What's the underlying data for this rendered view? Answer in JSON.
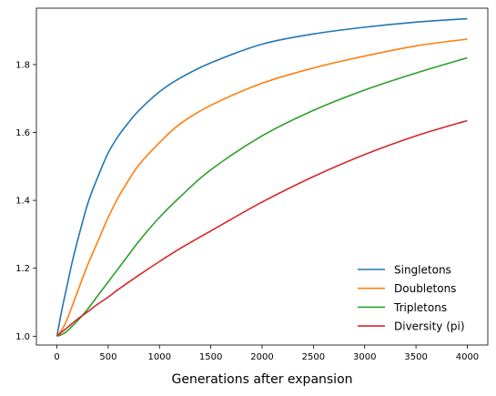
{
  "chart_data": {
    "type": "line",
    "title": "",
    "xlabel": "Generations after expansion",
    "ylabel": "",
    "xlim": [
      -200,
      4200
    ],
    "ylim": [
      0.974,
      1.966
    ],
    "xticks": [
      0,
      500,
      1000,
      1500,
      2000,
      2500,
      3000,
      3500,
      4000
    ],
    "yticks": [
      1.0,
      1.2,
      1.4,
      1.6,
      1.8
    ],
    "grid": false,
    "legend_position": "lower right",
    "series": [
      {
        "name": "Singletons",
        "color": "#1f77b4",
        "x": [
          0,
          50,
          100,
          150,
          200,
          300,
          400,
          500,
          600,
          700,
          800,
          1000,
          1200,
          1500,
          2000,
          2500,
          3000,
          3500,
          4000
        ],
        "y": [
          1.0,
          1.08,
          1.15,
          1.22,
          1.28,
          1.39,
          1.47,
          1.54,
          1.59,
          1.63,
          1.665,
          1.72,
          1.76,
          1.805,
          1.86,
          1.89,
          1.91,
          1.925,
          1.935
        ]
      },
      {
        "name": "Doubletons",
        "color": "#ff7f0e",
        "x": [
          0,
          50,
          100,
          150,
          200,
          300,
          400,
          500,
          600,
          700,
          800,
          1000,
          1200,
          1500,
          2000,
          2500,
          3000,
          3500,
          4000
        ],
        "y": [
          1.0,
          1.02,
          1.05,
          1.09,
          1.13,
          1.21,
          1.28,
          1.35,
          1.41,
          1.46,
          1.505,
          1.57,
          1.625,
          1.68,
          1.745,
          1.79,
          1.825,
          1.855,
          1.875
        ]
      },
      {
        "name": "Tripletons",
        "color": "#2ca02c",
        "x": [
          0,
          50,
          100,
          150,
          200,
          300,
          400,
          500,
          600,
          700,
          800,
          1000,
          1200,
          1500,
          2000,
          2500,
          3000,
          3500,
          4000
        ],
        "y": [
          1.0,
          1.005,
          1.015,
          1.03,
          1.045,
          1.08,
          1.12,
          1.16,
          1.2,
          1.24,
          1.28,
          1.35,
          1.41,
          1.49,
          1.59,
          1.665,
          1.725,
          1.775,
          1.82
        ]
      },
      {
        "name": "Diversity (pi)",
        "color": "#d62728",
        "x": [
          0,
          100,
          200,
          300,
          400,
          500,
          600,
          800,
          1000,
          1200,
          1500,
          2000,
          2500,
          3000,
          3500,
          4000
        ],
        "y": [
          1.0,
          1.025,
          1.05,
          1.072,
          1.095,
          1.115,
          1.138,
          1.18,
          1.22,
          1.258,
          1.31,
          1.395,
          1.47,
          1.535,
          1.59,
          1.635
        ]
      }
    ]
  }
}
